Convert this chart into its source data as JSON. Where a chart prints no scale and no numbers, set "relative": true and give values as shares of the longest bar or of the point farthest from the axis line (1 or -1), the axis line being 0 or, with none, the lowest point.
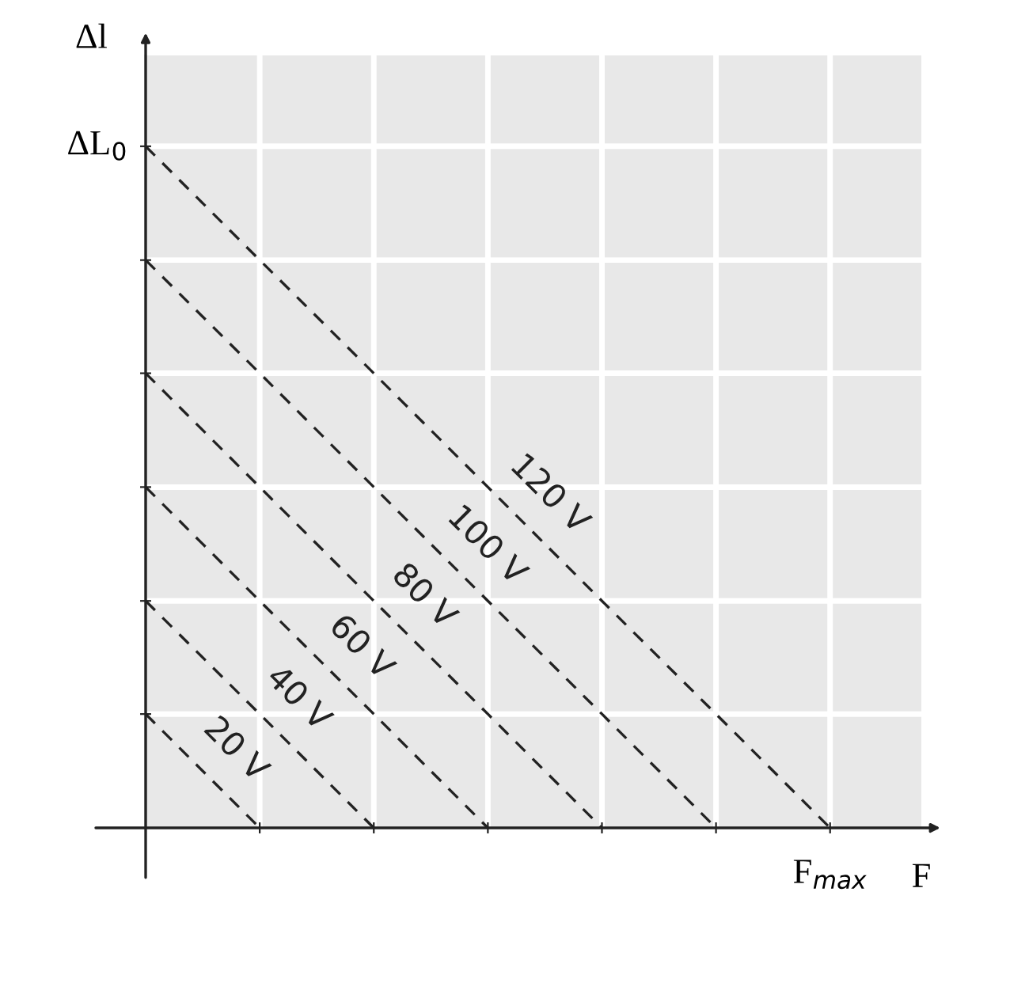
{
  "chart_data": {
    "type": "line",
    "xlabel": "F",
    "ylabel": "Δl",
    "relative": true,
    "categories": [
      null,
      null,
      null,
      null,
      null,
      null,
      null
    ],
    "annotations": [
      "ΔL$_{0}$",
      "F$_{max}$"
    ],
    "grid": true,
    "legend": false,
    "line_style": "dashed",
    "marker": "none",
    "series": [
      {
        "name": "20 V",
        "color": "#222222",
        "values": [
          0.167,
          0,
          null,
          null,
          null,
          null,
          null
        ]
      },
      {
        "name": "40 V",
        "color": "#222222",
        "values": [
          0.333,
          0.167,
          0,
          null,
          null,
          null,
          null
        ]
      },
      {
        "name": "60 V",
        "color": "#222222",
        "values": [
          0.5,
          0.333,
          0.167,
          0,
          null,
          null,
          null
        ]
      },
      {
        "name": "80 V",
        "color": "#222222",
        "values": [
          0.667,
          0.5,
          0.333,
          0.167,
          0,
          null,
          null
        ]
      },
      {
        "name": "100 V",
        "color": "#222222",
        "values": [
          0.833,
          0.667,
          0.5,
          0.333,
          0.167,
          0,
          null
        ]
      },
      {
        "name": "120 V",
        "color": "#222222",
        "values": [
          1,
          0.833,
          0.667,
          0.5,
          0.333,
          0.167,
          0
        ]
      }
    ]
  }
}
